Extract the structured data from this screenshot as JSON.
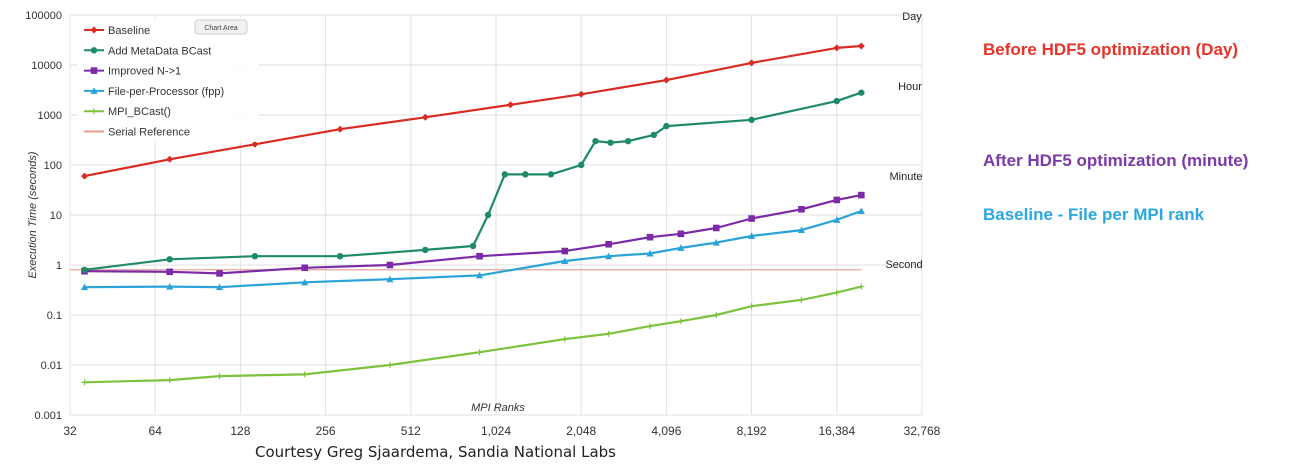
{
  "chart_data": {
    "type": "line",
    "title": "",
    "xlabel": "MPI Ranks",
    "ylabel": "Execution Time (seconds)",
    "xscale": "log2",
    "yscale": "log10",
    "xlim": [
      32,
      32768
    ],
    "ylim": [
      0.001,
      100000
    ],
    "x_ticks": [
      "32",
      "64",
      "128",
      "256",
      "512",
      "1,024",
      "2,048",
      "4,096",
      "8,192",
      "16,384",
      "32,768"
    ],
    "y_ticks": [
      "0.001",
      "0.01",
      "0.1",
      "1",
      "10",
      "100",
      "1000",
      "10000",
      "100000"
    ],
    "grid": true,
    "legend_position": "top-left",
    "legend_note": "Chart Area",
    "reference_lines": [
      {
        "label": "Day",
        "y": 86400
      },
      {
        "label": "Hour",
        "y": 3600
      },
      {
        "label": "Minute",
        "y": 60
      },
      {
        "label": "Second",
        "y": 1
      }
    ],
    "series": [
      {
        "name": "Baseline",
        "color": "#d92b22",
        "marker": "diamond",
        "x": [
          36,
          72,
          144,
          288,
          576,
          1152,
          2048,
          4096,
          8192,
          16384,
          20000
        ],
        "y": [
          60,
          130,
          260,
          520,
          900,
          1600,
          2600,
          5000,
          11000,
          22000,
          24000
        ]
      },
      {
        "name": "Add MetaData BCast",
        "color": "#1f8a6a",
        "marker": "circle",
        "x": [
          36,
          72,
          144,
          288,
          576,
          850,
          960,
          1100,
          1300,
          1600,
          2048,
          2300,
          2600,
          3000,
          3700,
          4096,
          8192,
          16384,
          20000
        ],
        "y": [
          0.8,
          1.3,
          1.5,
          1.5,
          2.0,
          2.4,
          10,
          65,
          65,
          65,
          100,
          300,
          280,
          300,
          400,
          600,
          800,
          1900,
          2800
        ]
      },
      {
        "name": "Improved N->1",
        "color": "#7b2aa8",
        "marker": "square",
        "x": [
          36,
          72,
          108,
          216,
          432,
          896,
          1792,
          2560,
          3584,
          4608,
          6144,
          8192,
          12288,
          16384,
          20000
        ],
        "y": [
          0.75,
          0.73,
          0.68,
          0.88,
          1.0,
          1.5,
          1.9,
          2.6,
          3.6,
          4.2,
          5.5,
          8.5,
          13,
          20,
          25
        ]
      },
      {
        "name": "File-per-Processor (fpp)",
        "color": "#2aa3d9",
        "marker": "triangle",
        "x": [
          36,
          72,
          108,
          216,
          432,
          896,
          1792,
          2560,
          3584,
          4608,
          6144,
          8192,
          12288,
          16384,
          20000
        ],
        "y": [
          0.36,
          0.37,
          0.36,
          0.45,
          0.52,
          0.62,
          1.2,
          1.5,
          1.7,
          2.2,
          2.8,
          3.8,
          5.0,
          8.0,
          12
        ]
      },
      {
        "name": "MPI_BCast()",
        "color": "#7cc23c",
        "marker": "plus",
        "x": [
          36,
          72,
          108,
          216,
          432,
          896,
          1792,
          2560,
          3584,
          4608,
          6144,
          8192,
          12288,
          16384,
          20000
        ],
        "y": [
          0.0045,
          0.005,
          0.006,
          0.0065,
          0.01,
          0.018,
          0.033,
          0.042,
          0.06,
          0.075,
          0.1,
          0.15,
          0.2,
          0.28,
          0.37
        ]
      },
      {
        "name": "Serial Reference",
        "color": "#e89a90",
        "marker": "none",
        "x": [
          32,
          20000
        ],
        "y": [
          0.8,
          0.8
        ]
      }
    ]
  },
  "annotations": [
    {
      "text": "Before HDF5 optimization (Day)",
      "color": "#e8332a"
    },
    {
      "text": "After HDF5 optimization (minute)",
      "color": "#7b3aa8"
    },
    {
      "text": "Baseline - File per MPI rank",
      "color": "#2aa8e0"
    }
  ],
  "credit": "Courtesy Greg Sjaardema, Sandia National Labs"
}
